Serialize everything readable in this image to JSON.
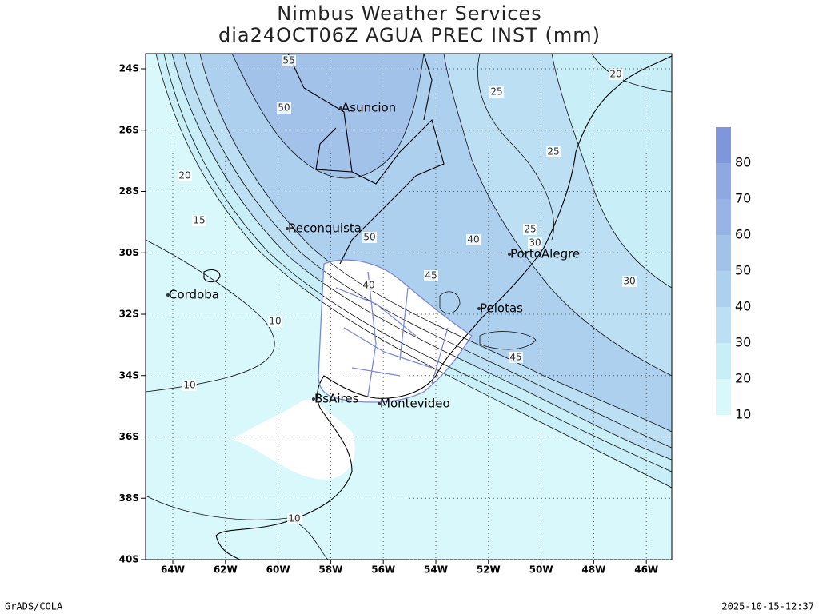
{
  "header": {
    "title": [
      "Nimbus Weather Services",
      "dia24OCT06Z AGUA PREC INST (mm)"
    ]
  },
  "map": {
    "lat_labels": [
      "24S",
      "26S",
      "28S",
      "30S",
      "32S",
      "34S",
      "36S",
      "38S",
      "40S"
    ],
    "lon_labels": [
      "64W",
      "62W",
      "60W",
      "58W",
      "56W",
      "54W",
      "52W",
      "50W",
      "48W",
      "46W"
    ],
    "cities": [
      "Asuncion",
      "Reconquista",
      "Cordoba",
      "PortoAlegre",
      "Pelotas",
      "BsAires",
      "Montevideo"
    ],
    "contour_labels": [
      55,
      50,
      20,
      15,
      10,
      10,
      10,
      50,
      40,
      45,
      40,
      25,
      25,
      25,
      30,
      30,
      20,
      45
    ]
  },
  "colorbar": {
    "labels": [
      10,
      20,
      30,
      40,
      50,
      60,
      70,
      80
    ],
    "colors": [
      "#d8f8fb",
      "#c8eef8",
      "#bcdff4",
      "#aed0ef",
      "#a3c2ea",
      "#98b4e6",
      "#8ea8e2",
      "#7f96dc"
    ]
  },
  "footer": {
    "left": "GrADS/COLA",
    "right": "2025-10-15-12:37"
  }
}
